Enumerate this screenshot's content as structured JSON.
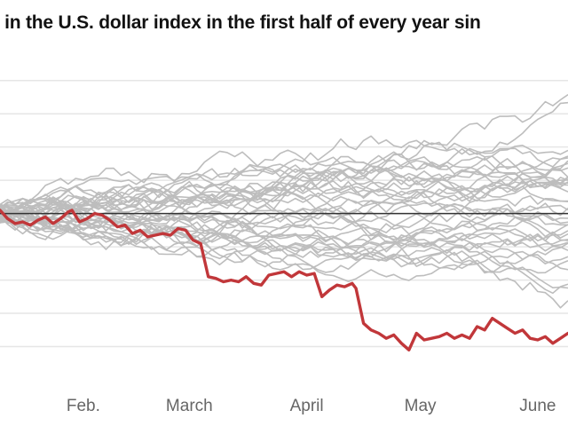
{
  "title": "e in the U.S. dollar index in the first half of every year sin",
  "chart_data": {
    "type": "line",
    "title": "e in the U.S. dollar index in the first half of every year sin",
    "x_axis": {
      "unit": "day of year",
      "range": [
        10,
        160
      ],
      "tick_labels": [
        {
          "label": "Feb.",
          "value": 32
        },
        {
          "label": "March",
          "value": 60
        },
        {
          "label": "April",
          "value": 91
        },
        {
          "label": "May",
          "value": 121
        },
        {
          "label": "June",
          "value": 152
        }
      ]
    },
    "y_axis": {
      "range": [
        -10,
        9
      ],
      "gridlines": [
        8,
        6,
        4,
        2,
        0,
        -2,
        -4,
        -6,
        -8
      ],
      "tick_labels": [],
      "baseline": 0
    },
    "grid": true,
    "colors": {
      "background": "#ffffff",
      "grid": "#e6e6e6",
      "baseline": "#333333",
      "other_years": "#bdbdbd",
      "highlight": "#c1373a",
      "tick_text": "#666666"
    },
    "highlight_series": {
      "points": [
        [
          10,
          0.2
        ],
        [
          12,
          -0.3
        ],
        [
          14,
          -0.6
        ],
        [
          16,
          -0.5
        ],
        [
          18,
          -0.7
        ],
        [
          20,
          -0.4
        ],
        [
          22,
          -0.2
        ],
        [
          24,
          -0.6
        ],
        [
          26,
          -0.3
        ],
        [
          28,
          0.1
        ],
        [
          29,
          0.2
        ],
        [
          31,
          -0.5
        ],
        [
          33,
          -0.3
        ],
        [
          35,
          0.0
        ],
        [
          37,
          -0.1
        ],
        [
          39,
          -0.4
        ],
        [
          41,
          -0.8
        ],
        [
          43,
          -0.7
        ],
        [
          45,
          -1.2
        ],
        [
          47,
          -1.0
        ],
        [
          49,
          -1.4
        ],
        [
          51,
          -1.3
        ],
        [
          53,
          -1.2
        ],
        [
          55,
          -1.3
        ],
        [
          57,
          -0.9
        ],
        [
          59,
          -1.0
        ],
        [
          61,
          -1.6
        ],
        [
          63,
          -1.8
        ],
        [
          65,
          -3.8
        ],
        [
          67,
          -3.9
        ],
        [
          69,
          -4.1
        ],
        [
          71,
          -4.0
        ],
        [
          73,
          -4.1
        ],
        [
          75,
          -3.8
        ],
        [
          77,
          -4.2
        ],
        [
          79,
          -4.3
        ],
        [
          81,
          -3.7
        ],
        [
          83,
          -3.6
        ],
        [
          85,
          -3.5
        ],
        [
          87,
          -3.8
        ],
        [
          89,
          -3.5
        ],
        [
          91,
          -3.7
        ],
        [
          93,
          -3.6
        ],
        [
          95,
          -5.0
        ],
        [
          97,
          -4.6
        ],
        [
          99,
          -4.3
        ],
        [
          101,
          -4.4
        ],
        [
          103,
          -4.2
        ],
        [
          104,
          -4.5
        ],
        [
          106,
          -6.6
        ],
        [
          108,
          -7.0
        ],
        [
          110,
          -7.2
        ],
        [
          112,
          -7.5
        ],
        [
          114,
          -7.3
        ],
        [
          116,
          -7.8
        ],
        [
          118,
          -8.2
        ],
        [
          120,
          -7.2
        ],
        [
          122,
          -7.6
        ],
        [
          124,
          -7.5
        ],
        [
          126,
          -7.4
        ],
        [
          128,
          -7.2
        ],
        [
          130,
          -7.5
        ],
        [
          132,
          -7.3
        ],
        [
          134,
          -7.5
        ],
        [
          136,
          -6.8
        ],
        [
          138,
          -7.0
        ],
        [
          140,
          -6.3
        ],
        [
          142,
          -6.6
        ],
        [
          144,
          -6.9
        ],
        [
          146,
          -7.2
        ],
        [
          148,
          -7.0
        ],
        [
          150,
          -7.5
        ],
        [
          152,
          -7.6
        ],
        [
          154,
          -7.4
        ],
        [
          156,
          -7.8
        ],
        [
          158,
          -7.5
        ],
        [
          160,
          -7.2
        ]
      ]
    },
    "other_series_count": 38
  }
}
